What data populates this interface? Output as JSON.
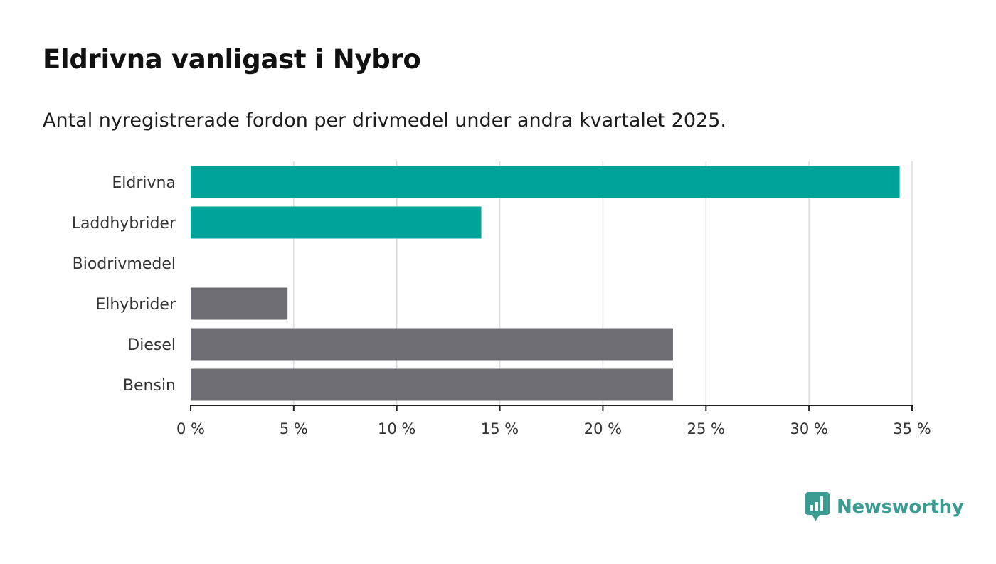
{
  "title": "Eldrivna vanligast i Nybro",
  "subtitle": "Antal nyregistrerade fordon per drivmedel under andra kvartalet 2025.",
  "colors": {
    "highlight": "#00a398",
    "other": "#6e6d74",
    "grid": "#dcdcdc",
    "axis": "#222222"
  },
  "logo": {
    "text": "Newsworthy",
    "icon": "newsworthy-logo-icon",
    "color": "#3a9b91"
  },
  "chart_data": {
    "type": "bar",
    "orientation": "horizontal",
    "categories": [
      "Eldrivna",
      "Laddhybrider",
      "Biodrivmedel",
      "Elhybrider",
      "Diesel",
      "Bensin"
    ],
    "values": [
      34.4,
      14.1,
      0,
      4.7,
      23.4,
      23.4
    ],
    "highlight": [
      true,
      true,
      true,
      false,
      false,
      false
    ],
    "xlim": [
      0,
      35
    ],
    "xticks": [
      0,
      5,
      10,
      15,
      20,
      25,
      30,
      35
    ],
    "tick_suffix": " %",
    "grid": true,
    "title": "Eldrivna vanligast i Nybro",
    "subtitle": "Antal nyregistrerade fordon per drivmedel under andra kvartalet 2025."
  }
}
